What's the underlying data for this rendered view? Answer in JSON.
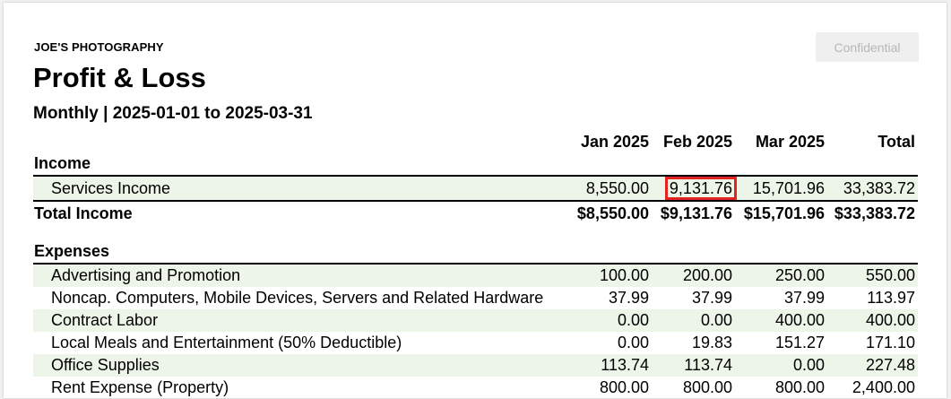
{
  "report": {
    "company": "JOE'S PHOTOGRAPHY",
    "title": "Profit & Loss",
    "subtitle": "Monthly | 2025-01-01 to 2025-03-31",
    "confidential_label": "Confidential"
  },
  "columns": [
    "Jan 2025",
    "Feb 2025",
    "Mar 2025",
    "Total"
  ],
  "income": {
    "heading": "Income",
    "rows": [
      {
        "label": "Services Income",
        "values": [
          "8,550.00",
          "9,131.76",
          "15,701.96",
          "33,383.72"
        ]
      }
    ],
    "total": {
      "label": "Total Income",
      "values": [
        "$8,550.00",
        "$9,131.76",
        "$15,701.96",
        "$33,383.72"
      ]
    }
  },
  "expenses": {
    "heading": "Expenses",
    "rows": [
      {
        "label": "Advertising and Promotion",
        "values": [
          "100.00",
          "200.00",
          "250.00",
          "550.00"
        ]
      },
      {
        "label": "Noncap. Computers, Mobile Devices, Servers and Related Hardware",
        "values": [
          "37.99",
          "37.99",
          "37.99",
          "113.97"
        ]
      },
      {
        "label": "Contract Labor",
        "values": [
          "0.00",
          "0.00",
          "400.00",
          "400.00"
        ]
      },
      {
        "label": "Local Meals and Entertainment (50% Deductible)",
        "values": [
          "0.00",
          "19.83",
          "151.27",
          "171.10"
        ]
      },
      {
        "label": "Office Supplies",
        "values": [
          "113.74",
          "113.74",
          "0.00",
          "227.48"
        ]
      },
      {
        "label": "Rent Expense (Property)",
        "values": [
          "800.00",
          "800.00",
          "800.00",
          "2,400.00"
        ]
      }
    ]
  },
  "colors": {
    "row_shade": "#ecf5e8",
    "highlight_border": "#e32222"
  }
}
